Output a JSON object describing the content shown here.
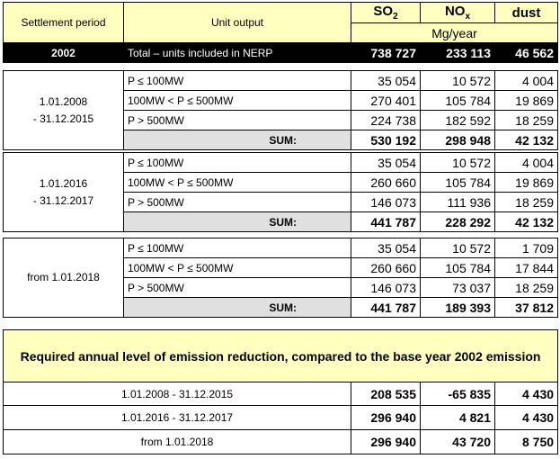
{
  "header": {
    "settlement_period": "Settlement period",
    "unit_output": "Unit output",
    "so2_main": "SO",
    "so2_sub": "2",
    "nox_main": "NO",
    "nox_sub": "x",
    "dust": "dust",
    "units": "Mg/year"
  },
  "base_year": {
    "year": "2002",
    "label": "Total – units included in NERP",
    "so2": "738 727",
    "nox": "233 113",
    "dust": "46 562"
  },
  "periods": [
    {
      "period_line1": "1.01.2008",
      "period_line2": "- 31.12.2015",
      "rows": [
        {
          "category": "P ≤ 100MW",
          "so2": "35 054",
          "nox": "10 572",
          "dust": "4 004"
        },
        {
          "category": "100MW < P ≤ 500MW",
          "so2": "270 401",
          "nox": "105 784",
          "dust": "19 869"
        },
        {
          "category": "P > 500MW",
          "so2": "224 738",
          "nox": "182 592",
          "dust": "18 259"
        }
      ],
      "sum": {
        "label": "SUM:",
        "so2": "530 192",
        "nox": "298 948",
        "dust": "42 132"
      }
    },
    {
      "period_line1": "1.01.2016",
      "period_line2": "- 31.12.2017",
      "rows": [
        {
          "category": "P ≤ 100MW",
          "so2": "35 054",
          "nox": "10 572",
          "dust": "4 004"
        },
        {
          "category": "100MW < P ≤ 500MW",
          "so2": "260 660",
          "nox": "105 784",
          "dust": "19 869"
        },
        {
          "category": "P > 500MW",
          "so2": "146 073",
          "nox": "111 936",
          "dust": "18 259"
        }
      ],
      "sum": {
        "label": "SUM:",
        "so2": "441 787",
        "nox": "228 292",
        "dust": "42 132"
      }
    },
    {
      "period_line1": "from 1.01.2018",
      "period_line2": "",
      "rows": [
        {
          "category": "P ≤ 100MW",
          "so2": "35 054",
          "nox": "10 572",
          "dust": "1 709"
        },
        {
          "category": "100MW < P ≤ 500MW",
          "so2": "260 660",
          "nox": "105 784",
          "dust": "17 844"
        },
        {
          "category": "P > 500MW",
          "so2": "146 073",
          "nox": "73 037",
          "dust": "18 259"
        }
      ],
      "sum": {
        "label": "SUM:",
        "so2": "441 787",
        "nox": "189 393",
        "dust": "37 812"
      }
    }
  ],
  "reduction": {
    "title": "Required annual level of emission reduction, compared to the base year 2002 emission",
    "rows": [
      {
        "period": "1.01.2008 - 31.12.2015",
        "so2": "208 535",
        "nox": "-65 835",
        "dust": "4 430"
      },
      {
        "period": "1.01.2016 - 31.12.2017",
        "so2": "296 940",
        "nox": "4 821",
        "dust": "4 430"
      },
      {
        "period": "from 1.01.2018",
        "so2": "296 940",
        "nox": "43 720",
        "dust": "8 750"
      }
    ]
  }
}
